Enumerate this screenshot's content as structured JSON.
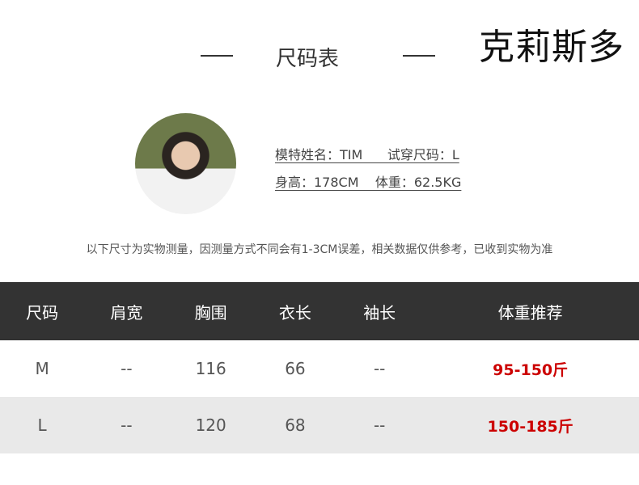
{
  "brand": "克莉斯多",
  "title": "尺码表",
  "model": {
    "line1": "模特姓名：TIM      试穿尺码：L",
    "line2": "身高：178CM    体重：62.5KG"
  },
  "note": "以下尺寸为实物测量，因测量方式不同会有1-3CM误差，相关数据仅供参考，已收到实物为准",
  "table": {
    "headers": [
      "尺码",
      "肩宽",
      "胸围",
      "衣长",
      "袖长",
      "体重推荐"
    ],
    "rows": [
      [
        "M",
        "--",
        "116",
        "66",
        "--",
        "95-150斤"
      ],
      [
        "L",
        "--",
        "120",
        "68",
        "--",
        "150-185斤"
      ]
    ]
  },
  "colors": {
    "header_bg": "#333333",
    "accent": "#cc0000",
    "alt_row": "#e9e9e9"
  }
}
